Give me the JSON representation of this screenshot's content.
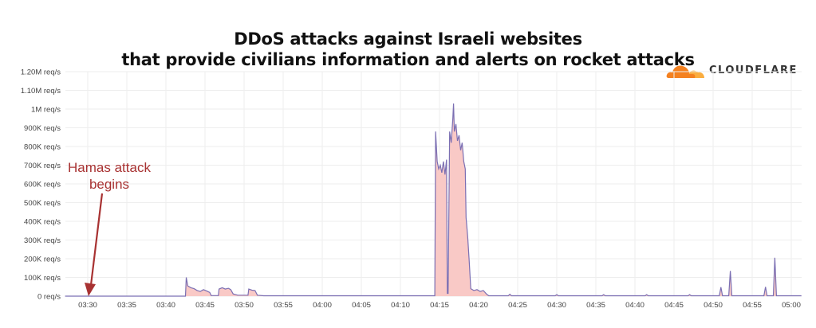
{
  "chart_data": {
    "type": "area",
    "title": [
      "DDoS attacks against Israeli websites",
      "that provide civilians information and alerts on rocket attacks"
    ],
    "xlabel": "",
    "ylabel": "",
    "x_unit": "minutes since 03:30",
    "x_ticks": [
      "03:30",
      "03:35",
      "03:40",
      "03:45",
      "03:50",
      "03:55",
      "04:00",
      "04:05",
      "04:10",
      "04:15",
      "04:20",
      "04:25",
      "04:30",
      "04:35",
      "04:40",
      "04:45",
      "04:50",
      "04:55",
      "05:00"
    ],
    "y_ticks": [
      "0 req/s",
      "100K req/s",
      "200K req/s",
      "300K req/s",
      "400K req/s",
      "500K req/s",
      "600K req/s",
      "700K req/s",
      "800K req/s",
      "900K req/s",
      "1M req/s",
      "1.10M req/s",
      "1.20M req/s"
    ],
    "ylim": [
      0,
      1200000
    ],
    "xlim": [
      -2.9,
      91.3
    ],
    "grid": true,
    "series": [
      {
        "name": "Requests per second",
        "unit": "K req/s",
        "points": [
          [
            -2.9,
            0
          ],
          [
            12.5,
            0
          ],
          [
            12.6,
            100
          ],
          [
            12.8,
            55
          ],
          [
            13.2,
            45
          ],
          [
            13.6,
            40
          ],
          [
            14.0,
            30
          ],
          [
            14.4,
            25
          ],
          [
            14.8,
            35
          ],
          [
            15.2,
            28
          ],
          [
            15.6,
            20
          ],
          [
            15.8,
            3
          ],
          [
            16.7,
            3
          ],
          [
            16.8,
            38
          ],
          [
            17.2,
            45
          ],
          [
            17.6,
            38
          ],
          [
            18.0,
            42
          ],
          [
            18.3,
            35
          ],
          [
            18.6,
            12
          ],
          [
            19.2,
            5
          ],
          [
            20.5,
            5
          ],
          [
            20.6,
            38
          ],
          [
            21.0,
            32
          ],
          [
            21.4,
            30
          ],
          [
            21.7,
            5
          ],
          [
            22.5,
            2
          ],
          [
            44.4,
            2
          ],
          [
            44.5,
            880
          ],
          [
            44.7,
            720
          ],
          [
            44.9,
            680
          ],
          [
            45.1,
            700
          ],
          [
            45.3,
            660
          ],
          [
            45.5,
            720
          ],
          [
            45.7,
            650
          ],
          [
            45.9,
            730
          ],
          [
            46.0,
            15
          ],
          [
            46.1,
            15
          ],
          [
            46.3,
            880
          ],
          [
            46.5,
            820
          ],
          [
            46.7,
            950
          ],
          [
            46.8,
            1030
          ],
          [
            46.9,
            880
          ],
          [
            47.1,
            920
          ],
          [
            47.3,
            830
          ],
          [
            47.5,
            860
          ],
          [
            47.7,
            780
          ],
          [
            47.9,
            820
          ],
          [
            48.1,
            720
          ],
          [
            48.3,
            680
          ],
          [
            48.4,
            420
          ],
          [
            48.6,
            320
          ],
          [
            48.8,
            190
          ],
          [
            49.0,
            40
          ],
          [
            49.4,
            30
          ],
          [
            49.8,
            35
          ],
          [
            50.2,
            25
          ],
          [
            50.6,
            30
          ],
          [
            51.0,
            12
          ],
          [
            51.3,
            2
          ],
          [
            53.8,
            2
          ],
          [
            54.0,
            10
          ],
          [
            54.2,
            2
          ],
          [
            59.8,
            2
          ],
          [
            60.0,
            8
          ],
          [
            60.2,
            2
          ],
          [
            65.8,
            2
          ],
          [
            66.0,
            8
          ],
          [
            66.2,
            2
          ],
          [
            71.3,
            2
          ],
          [
            71.5,
            8
          ],
          [
            71.7,
            2
          ],
          [
            76.8,
            2
          ],
          [
            77.0,
            8
          ],
          [
            77.2,
            2
          ],
          [
            80.8,
            2
          ],
          [
            81.0,
            48
          ],
          [
            81.2,
            2
          ],
          [
            82.0,
            2
          ],
          [
            82.2,
            135
          ],
          [
            82.4,
            2
          ],
          [
            86.5,
            2
          ],
          [
            86.7,
            50
          ],
          [
            86.9,
            2
          ],
          [
            87.7,
            2
          ],
          [
            87.9,
            205
          ],
          [
            88.1,
            2
          ],
          [
            91.3,
            2
          ]
        ]
      }
    ],
    "annotations": [
      {
        "text": [
          "Hamas attack",
          "begins"
        ],
        "x_time": "03:30",
        "color": "#a83232"
      }
    ],
    "colors": {
      "line": "#7b6fb3",
      "fill": "#f9c9c6",
      "grid": "#eeeeee",
      "annotation": "#a83232"
    }
  },
  "logo": {
    "text": "CLOUDFLARE",
    "orange": "#f48120",
    "light": "#faad3f"
  }
}
